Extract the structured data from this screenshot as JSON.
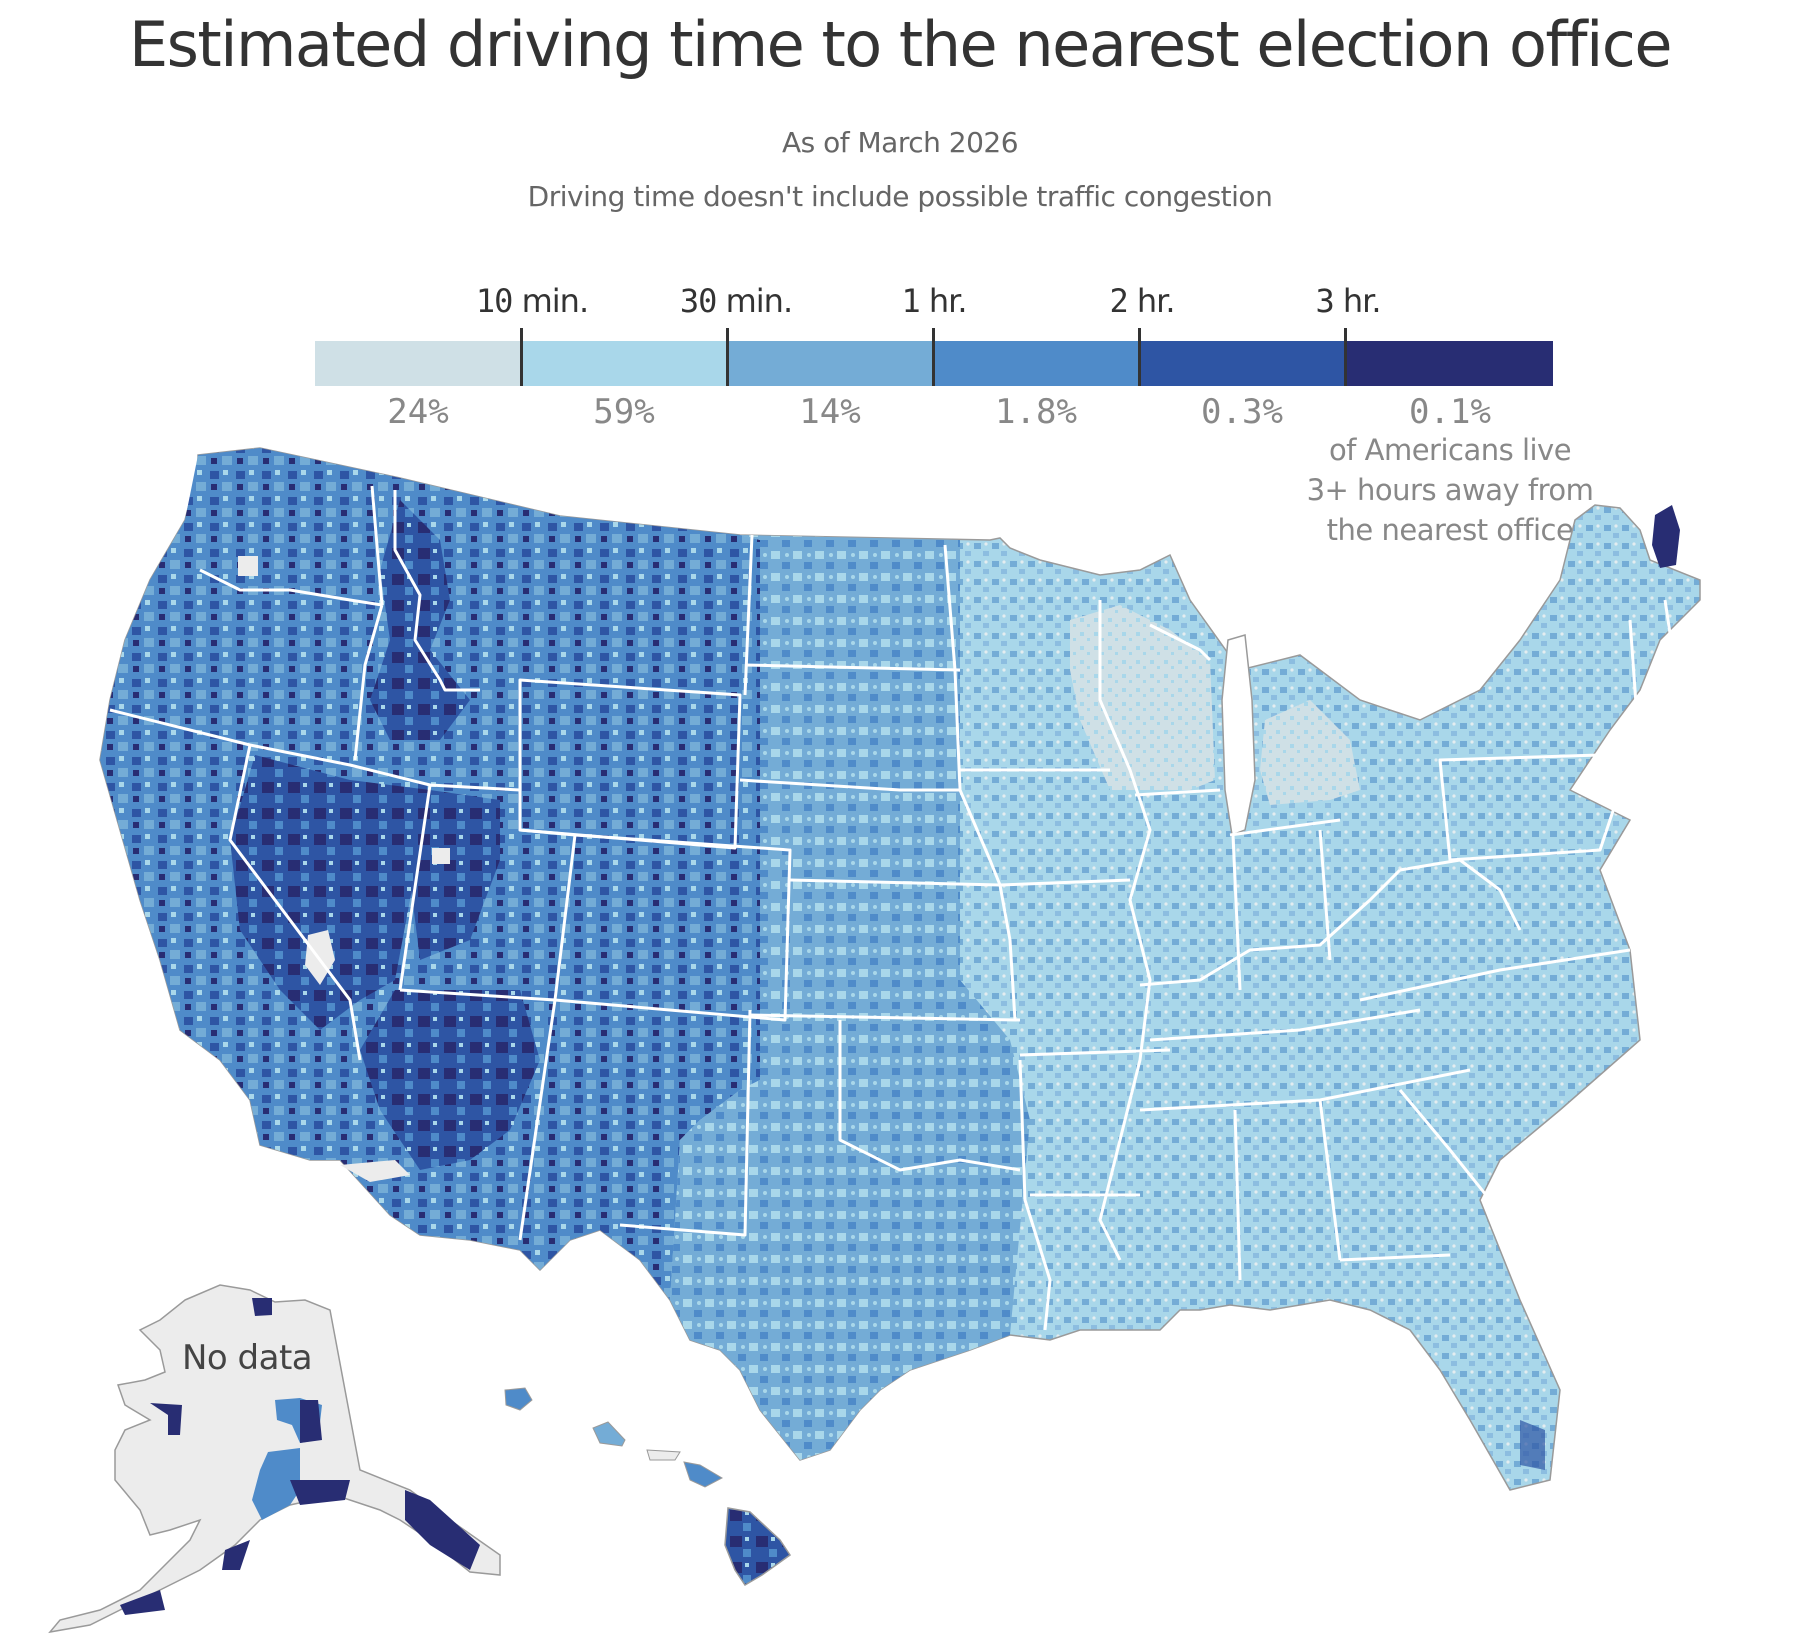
{
  "header": {
    "title": "Estimated driving time to the nearest election office",
    "subtitle_date": "As of March 2026",
    "subtitle_note": "Driving time doesn't include possible traffic congestion"
  },
  "legend": {
    "ticks": [
      {
        "num": "10",
        "unit": " min."
      },
      {
        "num": "30",
        "unit": " min."
      },
      {
        "num": "1",
        "unit": " hr."
      },
      {
        "num": "2",
        "unit": " hr."
      },
      {
        "num": "3",
        "unit": " hr."
      }
    ],
    "bins": [
      {
        "label": "Under 10 min.",
        "share": "24%",
        "color": "#cfe0e6"
      },
      {
        "label": "10–30 min.",
        "share": "59%",
        "color": "#a9d7ea"
      },
      {
        "label": "30 min.–1 hr.",
        "share": "14%",
        "color": "#74acd6"
      },
      {
        "label": "1–2 hr.",
        "share": "1.8%",
        "color": "#4f8bc9"
      },
      {
        "label": "2–3 hr.",
        "share": "0.3%",
        "color": "#2e55a4"
      },
      {
        "label": "3+ hr.",
        "share": "0.1%",
        "color": "#282d73"
      }
    ],
    "note_lines": [
      "of Americans live",
      "3+ hours away from",
      "the nearest office"
    ]
  },
  "map": {
    "nodata_label": "No data",
    "nodata_color": "#ececec",
    "border_color": "#ffffff",
    "outline_color": "#9a9a9a"
  },
  "chart_data": {
    "type": "choropleth",
    "title": "Estimated driving time to the nearest election office",
    "subtitle": "As of March 2026",
    "legend_placement": "top",
    "bins": [
      "<10 min.",
      "10–30 min.",
      "30 min.–1 hr.",
      "1–2 hr.",
      "2–3 hr.",
      "3+ hr."
    ],
    "population_share_percent": [
      24,
      59,
      14,
      1.8,
      0.3,
      0.1
    ],
    "annotation": "0.1% of Americans live 3+ hours away from the nearest office",
    "no_data_regions": [
      "Alaska (most of state)"
    ]
  }
}
